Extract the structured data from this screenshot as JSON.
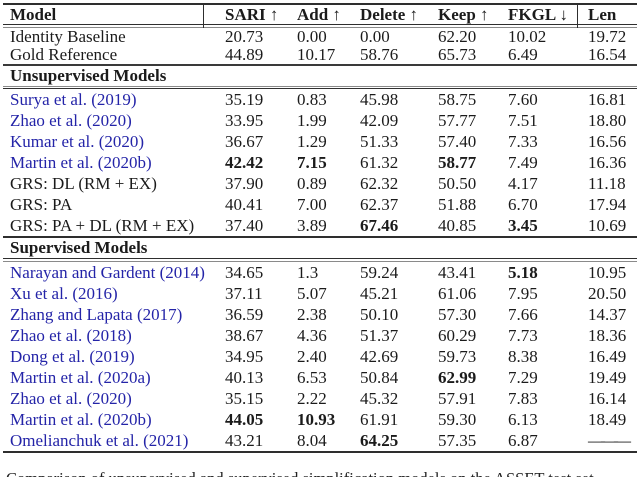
{
  "colors": {
    "background": "#ffffff",
    "text": "#1b1b1b",
    "citation_blue": "#2424a8",
    "rule": "#2e2e2e"
  },
  "table": {
    "header": {
      "model": "Model",
      "sari": "SARI ↑",
      "add": "Add ↑",
      "delete": "Delete ↑",
      "keep": "Keep ↑",
      "fkgl": "FKGL ↓",
      "len": "Len"
    },
    "baseline": [
      {
        "model": "Identity Baseline",
        "values": [
          "20.73",
          "0.00",
          "0.00",
          "62.20",
          "10.02",
          "19.72"
        ]
      },
      {
        "model": "Gold Reference",
        "values": [
          "44.89",
          "10.17",
          "58.76",
          "65.73",
          "6.49",
          "16.54"
        ]
      }
    ],
    "sections": [
      {
        "title": "Unsupervised Models",
        "rows": [
          {
            "model": "Surya et al. (2019)",
            "citation": true,
            "values": [
              "35.19",
              "0.83",
              "45.98",
              "58.75",
              "7.60",
              "16.81"
            ]
          },
          {
            "model": "Zhao et al. (2020)",
            "citation": true,
            "values": [
              "33.95",
              "1.99",
              "42.09",
              "57.77",
              "7.51",
              "18.80"
            ]
          },
          {
            "model": "Kumar et al. (2020)",
            "citation": true,
            "values": [
              "36.67",
              "1.29",
              "51.33",
              "57.40",
              "7.33",
              "16.56"
            ]
          },
          {
            "model": "Martin et al. (2020b)",
            "citation": true,
            "values": [
              "42.42",
              "7.15",
              "61.32",
              "58.77",
              "7.49",
              "16.36"
            ],
            "bold_cols": [
              0,
              1,
              3
            ]
          },
          {
            "model": "GRS: DL (RM + EX)",
            "citation": false,
            "values": [
              "37.90",
              "0.89",
              "62.32",
              "50.50",
              "4.17",
              "11.18"
            ]
          },
          {
            "model": "GRS: PA",
            "citation": false,
            "values": [
              "40.41",
              "7.00",
              "62.37",
              "51.88",
              "6.70",
              "17.94"
            ]
          },
          {
            "model": "GRS: PA + DL (RM + EX)",
            "citation": false,
            "values": [
              "37.40",
              "3.89",
              "67.46",
              "40.85",
              "3.45",
              "10.69"
            ],
            "bold_cols": [
              2,
              4
            ]
          }
        ]
      },
      {
        "title": "Supervised Models",
        "rows": [
          {
            "model": "Narayan and Gardent (2014)",
            "citation": true,
            "values": [
              "34.65",
              "1.3",
              "59.24",
              "43.41",
              "5.18",
              "10.95"
            ],
            "bold_cols": [
              4
            ]
          },
          {
            "model": "Xu et al. (2016)",
            "citation": true,
            "values": [
              "37.11",
              "5.07",
              "45.21",
              "61.06",
              "7.95",
              "20.50"
            ]
          },
          {
            "model": "Zhang and Lapata (2017)",
            "citation": true,
            "values": [
              "36.59",
              "2.38",
              "50.10",
              "57.30",
              "7.66",
              "14.37"
            ]
          },
          {
            "model": "Zhao et al. (2018)",
            "citation": true,
            "values": [
              "38.67",
              "4.36",
              "51.37",
              "60.29",
              "7.73",
              "18.36"
            ]
          },
          {
            "model": "Dong et al. (2019)",
            "citation": true,
            "values": [
              "34.95",
              "2.40",
              "42.69",
              "59.73",
              "8.38",
              "16.49"
            ]
          },
          {
            "model": "Martin et al. (2020a)",
            "citation": true,
            "values": [
              "40.13",
              "6.53",
              "50.84",
              "62.99",
              "7.29",
              "19.49"
            ],
            "bold_cols": [
              3
            ]
          },
          {
            "model": "Zhao et al. (2020)",
            "citation": true,
            "values": [
              "35.15",
              "2.22",
              "45.32",
              "57.91",
              "7.83",
              "16.14"
            ]
          },
          {
            "model": "Martin et al. (2020b)",
            "citation": true,
            "values": [
              "44.05",
              "10.93",
              "61.91",
              "59.30",
              "6.13",
              "18.49"
            ],
            "bold_cols": [
              0,
              1
            ]
          },
          {
            "model": "Omelianchuk et al. (2021)",
            "citation": true,
            "values": [
              "43.21",
              "8.04",
              "64.25",
              "57.35",
              "6.87",
              "———"
            ],
            "bold_cols": [
              2
            ]
          }
        ]
      }
    ]
  },
  "caption": {
    "text": "Comparison of unsupervised and supervised simplification models on the ASSET test set."
  }
}
